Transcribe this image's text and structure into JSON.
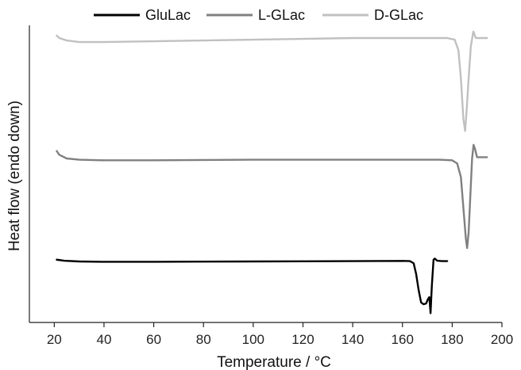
{
  "chart_data": {
    "type": "line",
    "title": "",
    "xlabel": "Temperature / °C",
    "ylabel": "Heat flow (endo down)",
    "xlim": [
      10,
      200
    ],
    "xticks": [
      20,
      40,
      60,
      80,
      100,
      120,
      140,
      160,
      180,
      200
    ],
    "yticks_shown": false,
    "grid": false,
    "legend_position": "top",
    "series": [
      {
        "name": "GluLac",
        "color": "#000000",
        "points": [
          [
            21,
            0.05
          ],
          [
            24,
            0.02
          ],
          [
            30,
            0.0
          ],
          [
            40,
            -0.01
          ],
          [
            60,
            -0.01
          ],
          [
            80,
            -0.005
          ],
          [
            100,
            0.0
          ],
          [
            120,
            0.005
          ],
          [
            140,
            0.01
          ],
          [
            160,
            0.015
          ],
          [
            163,
            0.01
          ],
          [
            164.5,
            -0.05
          ],
          [
            165.5,
            -0.35
          ],
          [
            166.5,
            -0.8
          ],
          [
            167.5,
            -1.15
          ],
          [
            168.5,
            -1.2
          ],
          [
            169.5,
            -1.18
          ],
          [
            170.3,
            -1.05
          ],
          [
            170.8,
            -1.0
          ],
          [
            171.3,
            -1.45
          ],
          [
            171.8,
            -0.7
          ],
          [
            172.5,
            0.05
          ],
          [
            173,
            0.08
          ],
          [
            174,
            0.02
          ],
          [
            176,
            0.01
          ],
          [
            178,
            0.01
          ]
        ]
      },
      {
        "name": "L-GLac",
        "color": "#808080",
        "points": [
          [
            21,
            0.12
          ],
          [
            22,
            0.06
          ],
          [
            25,
            0.0
          ],
          [
            30,
            -0.02
          ],
          [
            40,
            -0.03
          ],
          [
            60,
            -0.03
          ],
          [
            80,
            -0.025
          ],
          [
            100,
            -0.02
          ],
          [
            120,
            -0.02
          ],
          [
            140,
            -0.02
          ],
          [
            160,
            -0.02
          ],
          [
            175,
            -0.02
          ],
          [
            180,
            -0.03
          ],
          [
            182,
            -0.08
          ],
          [
            183.5,
            -0.3
          ],
          [
            184.5,
            -0.8
          ],
          [
            185.5,
            -1.3
          ],
          [
            186,
            -1.45
          ],
          [
            186.6,
            -1.2
          ],
          [
            187.3,
            -0.6
          ],
          [
            188,
            0.0
          ],
          [
            188.6,
            0.22
          ],
          [
            189.2,
            0.15
          ],
          [
            190,
            0.02
          ],
          [
            192,
            0.02
          ],
          [
            194,
            0.02
          ]
        ]
      },
      {
        "name": "D-GLac",
        "color": "#c0c0c0",
        "points": [
          [
            21,
            0.03
          ],
          [
            22,
            0.0
          ],
          [
            25,
            -0.03
          ],
          [
            30,
            -0.05
          ],
          [
            40,
            -0.05
          ],
          [
            60,
            -0.04
          ],
          [
            80,
            -0.03
          ],
          [
            100,
            -0.02
          ],
          [
            120,
            -0.01
          ],
          [
            140,
            0.0
          ],
          [
            160,
            0.0
          ],
          [
            178,
            0.0
          ],
          [
            181,
            -0.02
          ],
          [
            182.5,
            -0.15
          ],
          [
            183.5,
            -0.5
          ],
          [
            184.5,
            -1.0
          ],
          [
            185.2,
            -1.15
          ],
          [
            185.8,
            -0.9
          ],
          [
            186.6,
            -0.5
          ],
          [
            187.5,
            -0.1
          ],
          [
            188.5,
            0.08
          ],
          [
            189.5,
            0.0
          ],
          [
            191,
            0.0
          ],
          [
            194,
            0.0
          ]
        ]
      }
    ]
  }
}
